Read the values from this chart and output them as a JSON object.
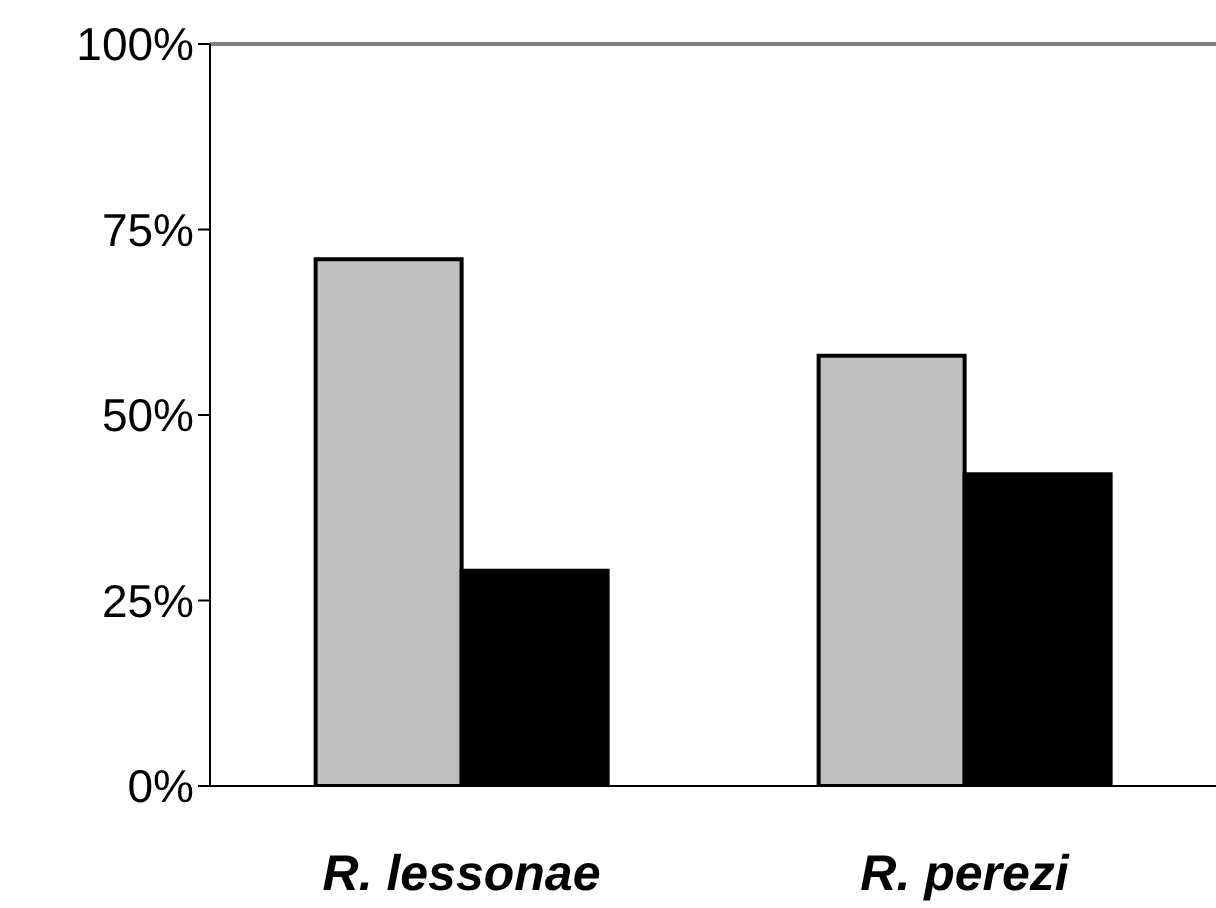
{
  "chart_data": {
    "type": "bar",
    "categories": [
      "R. lessonae",
      "R. perezi"
    ],
    "series": [
      {
        "color": "#c0c0c0",
        "values": [
          71,
          58
        ]
      },
      {
        "color": "#000000",
        "values": [
          29,
          42
        ]
      }
    ],
    "ylim": [
      0,
      100
    ],
    "yticks": [
      {
        "value": 0,
        "label": "0%"
      },
      {
        "value": 25,
        "label": "25%"
      },
      {
        "value": 50,
        "label": "50%"
      },
      {
        "value": 75,
        "label": "75%"
      },
      {
        "value": 100,
        "label": "100%"
      }
    ],
    "ref_lines": [
      {
        "axis": "y",
        "value": 100,
        "label": null,
        "color": "#808080"
      }
    ],
    "grid": false,
    "legend": false
  }
}
